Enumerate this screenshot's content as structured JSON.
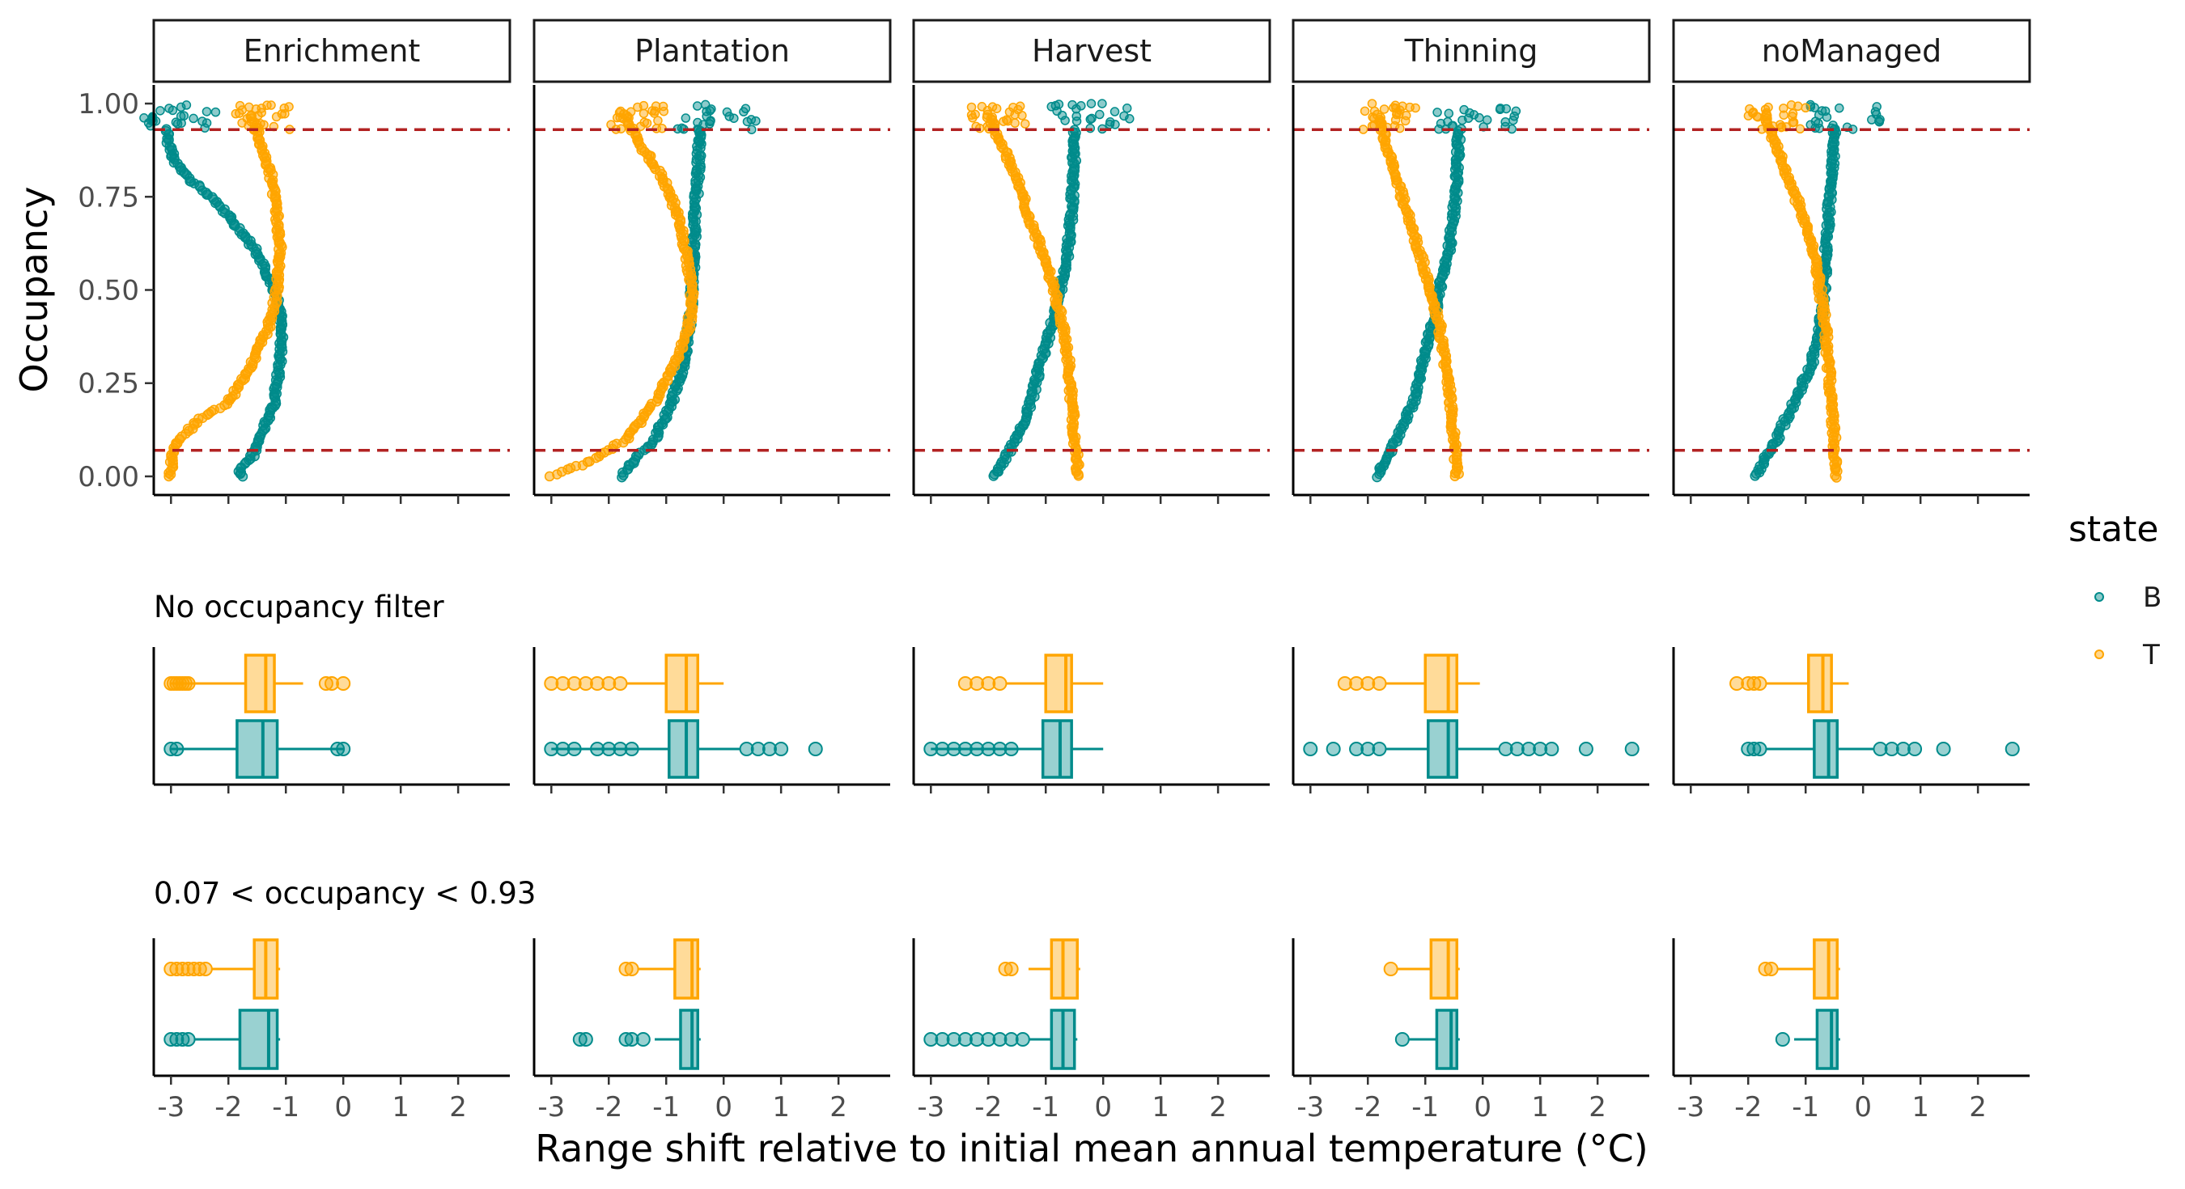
{
  "chart_data": {
    "type": "scatter",
    "facets": [
      "Enrichment",
      "Plantation",
      "Harvest",
      "Thinning",
      "noManaged"
    ],
    "ylabel": "Occupancy",
    "xlabel": "Range shift relative to initial mean annual temperature (°C)",
    "x_ticks": [
      "-3",
      "-2",
      "-1",
      "0",
      "1",
      "2"
    ],
    "y_ticks": [
      "0.00",
      "0.25",
      "0.50",
      "0.75",
      "1.00"
    ],
    "xlim": [
      -3.3,
      2.9
    ],
    "ylim": [
      -0.05,
      1.05
    ],
    "threshold_lines": [
      0.07,
      0.93
    ],
    "threshold_color": "#b22222",
    "legend": {
      "title": "state",
      "entries": [
        {
          "key": "B",
          "label": "B",
          "color": "#008b8b"
        },
        {
          "key": "T",
          "label": "T",
          "color": "#ffa500"
        }
      ]
    },
    "rows": [
      {
        "title": "",
        "type": "scatter"
      },
      {
        "title": "No occupancy filter",
        "type": "boxplot"
      },
      {
        "title": "0.07 < occupancy < 0.93",
        "type": "boxplot"
      }
    ],
    "curves": {
      "B": [
        [
          [
            0.0,
            -1.75
          ],
          [
            0.02,
            -1.8
          ],
          [
            0.05,
            -1.6
          ],
          [
            0.1,
            -1.45
          ],
          [
            0.2,
            -1.2
          ],
          [
            0.3,
            -1.1
          ],
          [
            0.4,
            -1.05
          ],
          [
            0.5,
            -1.2
          ],
          [
            0.6,
            -1.5
          ],
          [
            0.7,
            -2.0
          ],
          [
            0.75,
            -2.3
          ],
          [
            0.8,
            -2.7
          ],
          [
            0.85,
            -2.95
          ],
          [
            0.9,
            -3.05
          ],
          [
            0.93,
            -3.05
          ]
        ],
        [
          [
            0.0,
            -1.8
          ],
          [
            0.05,
            -1.5
          ],
          [
            0.1,
            -1.2
          ],
          [
            0.2,
            -0.9
          ],
          [
            0.3,
            -0.7
          ],
          [
            0.4,
            -0.6
          ],
          [
            0.5,
            -0.55
          ],
          [
            0.6,
            -0.52
          ],
          [
            0.7,
            -0.5
          ],
          [
            0.8,
            -0.45
          ],
          [
            0.9,
            -0.42
          ],
          [
            0.93,
            -0.4
          ]
        ],
        [
          [
            0.0,
            -1.9
          ],
          [
            0.05,
            -1.7
          ],
          [
            0.1,
            -1.5
          ],
          [
            0.2,
            -1.25
          ],
          [
            0.3,
            -1.1
          ],
          [
            0.4,
            -0.9
          ],
          [
            0.5,
            -0.75
          ],
          [
            0.6,
            -0.62
          ],
          [
            0.7,
            -0.55
          ],
          [
            0.8,
            -0.52
          ],
          [
            0.9,
            -0.5
          ],
          [
            0.93,
            -0.5
          ]
        ],
        [
          [
            0.0,
            -1.85
          ],
          [
            0.05,
            -1.65
          ],
          [
            0.1,
            -1.5
          ],
          [
            0.2,
            -1.2
          ],
          [
            0.3,
            -1.05
          ],
          [
            0.4,
            -0.9
          ],
          [
            0.5,
            -0.75
          ],
          [
            0.6,
            -0.6
          ],
          [
            0.7,
            -0.5
          ],
          [
            0.8,
            -0.45
          ],
          [
            0.9,
            -0.42
          ],
          [
            0.93,
            -0.4
          ]
        ],
        [
          [
            0.0,
            -1.85
          ],
          [
            0.05,
            -1.7
          ],
          [
            0.1,
            -1.5
          ],
          [
            0.2,
            -1.2
          ],
          [
            0.3,
            -0.9
          ],
          [
            0.4,
            -0.75
          ],
          [
            0.5,
            -0.68
          ],
          [
            0.6,
            -0.65
          ],
          [
            0.7,
            -0.6
          ],
          [
            0.8,
            -0.55
          ],
          [
            0.9,
            -0.5
          ],
          [
            0.93,
            -0.5
          ]
        ]
      ],
      "T": [
        [
          [
            0.0,
            -3.0
          ],
          [
            0.05,
            -3.0
          ],
          [
            0.1,
            -2.85
          ],
          [
            0.15,
            -2.5
          ],
          [
            0.2,
            -2.0
          ],
          [
            0.3,
            -1.6
          ],
          [
            0.4,
            -1.3
          ],
          [
            0.5,
            -1.15
          ],
          [
            0.6,
            -1.1
          ],
          [
            0.7,
            -1.15
          ],
          [
            0.8,
            -1.25
          ],
          [
            0.9,
            -1.45
          ],
          [
            0.97,
            -1.6
          ]
        ],
        [
          [
            0.0,
            -3.0
          ],
          [
            0.05,
            -2.2
          ],
          [
            0.1,
            -1.7
          ],
          [
            0.2,
            -1.2
          ],
          [
            0.3,
            -0.85
          ],
          [
            0.4,
            -0.6
          ],
          [
            0.5,
            -0.55
          ],
          [
            0.6,
            -0.65
          ],
          [
            0.7,
            -0.8
          ],
          [
            0.8,
            -1.05
          ],
          [
            0.9,
            -1.5
          ],
          [
            0.97,
            -1.7
          ]
        ],
        [
          [
            0.0,
            -0.45
          ],
          [
            0.05,
            -0.45
          ],
          [
            0.1,
            -0.5
          ],
          [
            0.2,
            -0.55
          ],
          [
            0.3,
            -0.6
          ],
          [
            0.4,
            -0.7
          ],
          [
            0.5,
            -0.85
          ],
          [
            0.6,
            -1.05
          ],
          [
            0.7,
            -1.3
          ],
          [
            0.8,
            -1.5
          ],
          [
            0.9,
            -1.8
          ],
          [
            0.97,
            -2.0
          ]
        ],
        [
          [
            0.0,
            -0.45
          ],
          [
            0.05,
            -0.48
          ],
          [
            0.1,
            -0.5
          ],
          [
            0.2,
            -0.55
          ],
          [
            0.3,
            -0.65
          ],
          [
            0.4,
            -0.75
          ],
          [
            0.5,
            -0.9
          ],
          [
            0.6,
            -1.1
          ],
          [
            0.7,
            -1.3
          ],
          [
            0.8,
            -1.5
          ],
          [
            0.9,
            -1.7
          ],
          [
            0.97,
            -1.8
          ]
        ],
        [
          [
            0.0,
            -0.45
          ],
          [
            0.05,
            -0.48
          ],
          [
            0.1,
            -0.5
          ],
          [
            0.2,
            -0.55
          ],
          [
            0.3,
            -0.6
          ],
          [
            0.4,
            -0.65
          ],
          [
            0.5,
            -0.75
          ],
          [
            0.6,
            -0.85
          ],
          [
            0.7,
            -1.05
          ],
          [
            0.8,
            -1.3
          ],
          [
            0.9,
            -1.55
          ],
          [
            0.97,
            -1.7
          ]
        ]
      ]
    },
    "boxplots_no_filter": [
      {
        "facet": "Enrichment",
        "T": {
          "min": -3.0,
          "q1": -1.7,
          "median": -1.35,
          "q3": -1.2,
          "max": -0.7,
          "outliers": [
            -3.0,
            -2.95,
            -2.9,
            -2.85,
            -2.8,
            -2.75,
            -2.7,
            -0.3,
            -0.2,
            0.0
          ]
        },
        "B": {
          "min": -3.0,
          "q1": -1.85,
          "median": -1.4,
          "q3": -1.15,
          "max": 0.0,
          "outliers": [
            -3.0,
            -2.9,
            -0.1,
            0.0
          ]
        }
      },
      {
        "facet": "Plantation",
        "T": {
          "min": -1.7,
          "q1": -1.0,
          "median": -0.65,
          "q3": -0.45,
          "max": 0.0,
          "outliers": [
            -3.0,
            -2.8,
            -2.6,
            -2.4,
            -2.2,
            -2.0,
            -1.8
          ]
        },
        "B": {
          "min": -3.0,
          "q1": -0.95,
          "median": -0.65,
          "q3": -0.45,
          "max": 0.3,
          "outliers": [
            -3.0,
            -2.8,
            -2.6,
            -2.2,
            -2.0,
            -1.8,
            -1.6,
            0.4,
            0.6,
            0.8,
            1.0,
            1.6
          ]
        },
        "_note": ""
      },
      {
        "facet": "Harvest",
        "T": {
          "min": -1.7,
          "q1": -1.0,
          "median": -0.65,
          "q3": -0.55,
          "max": 0.0,
          "outliers": [
            -2.4,
            -2.2,
            -2.0,
            -1.8
          ]
        },
        "B": {
          "min": -3.0,
          "q1": -1.05,
          "median": -0.75,
          "q3": -0.55,
          "max": 0.0,
          "outliers": [
            -3.0,
            -2.8,
            -2.6,
            -2.4,
            -2.2,
            -2.0,
            -1.8,
            -1.6
          ]
        }
      },
      {
        "facet": "Thinning",
        "T": {
          "min": -1.7,
          "q1": -1.0,
          "median": -0.6,
          "q3": -0.45,
          "max": -0.05,
          "outliers": [
            -2.4,
            -2.2,
            -2.0,
            -1.8
          ]
        },
        "B": {
          "min": -1.7,
          "q1": -0.95,
          "median": -0.6,
          "q3": -0.45,
          "max": 0.3,
          "outliers": [
            -3.0,
            -2.6,
            -2.2,
            -2.0,
            -1.8,
            0.4,
            0.6,
            0.8,
            1.0,
            1.2,
            1.8,
            2.6
          ]
        }
      },
      {
        "facet": "noManaged",
        "T": {
          "min": -1.7,
          "q1": -0.95,
          "median": -0.7,
          "q3": -0.55,
          "max": -0.25,
          "outliers": [
            -2.2,
            -2.0,
            -1.9,
            -1.8
          ]
        },
        "B": {
          "min": -1.7,
          "q1": -0.85,
          "median": -0.6,
          "q3": -0.45,
          "max": 0.2,
          "outliers": [
            -2.0,
            -1.9,
            -1.8,
            0.3,
            0.5,
            0.7,
            0.9,
            1.4,
            2.6
          ]
        }
      }
    ],
    "boxplots_filtered": [
      {
        "facet": "Enrichment",
        "T": {
          "min": -2.3,
          "q1": -1.55,
          "median": -1.35,
          "q3": -1.15,
          "max": -1.1,
          "outliers": [
            -3.0,
            -2.9,
            -2.8,
            -2.7,
            -2.6,
            -2.5,
            -2.4
          ]
        },
        "B": {
          "min": -2.6,
          "q1": -1.8,
          "median": -1.3,
          "q3": -1.15,
          "max": -1.1,
          "outliers": [
            -3.0,
            -2.9,
            -2.8,
            -2.7
          ]
        }
      },
      {
        "facet": "Plantation",
        "T": {
          "min": -1.5,
          "q1": -0.85,
          "median": -0.55,
          "q3": -0.45,
          "max": -0.4,
          "outliers": [
            -1.7,
            -1.6
          ]
        },
        "B": {
          "min": -1.2,
          "q1": -0.75,
          "median": -0.55,
          "q3": -0.45,
          "max": -0.4,
          "outliers": [
            -2.5,
            -2.4,
            -1.7,
            -1.6,
            -1.4
          ]
        }
      },
      {
        "facet": "Harvest",
        "T": {
          "min": -1.3,
          "q1": -0.9,
          "median": -0.7,
          "q3": -0.45,
          "max": -0.4,
          "outliers": [
            -1.7,
            -1.6
          ]
        },
        "B": {
          "min": -1.3,
          "q1": -0.9,
          "median": -0.7,
          "q3": -0.5,
          "max": -0.45,
          "outliers": [
            -3.0,
            -2.8,
            -2.6,
            -2.4,
            -2.2,
            -2.0,
            -1.8,
            -1.6,
            -1.4
          ]
        }
      },
      {
        "facet": "Thinning",
        "T": {
          "min": -1.5,
          "q1": -0.9,
          "median": -0.6,
          "q3": -0.45,
          "max": -0.4,
          "outliers": [
            -1.6
          ]
        },
        "B": {
          "min": -1.3,
          "q1": -0.8,
          "median": -0.55,
          "q3": -0.45,
          "max": -0.4,
          "outliers": [
            -1.4
          ]
        }
      },
      {
        "facet": "noManaged",
        "T": {
          "min": -1.5,
          "q1": -0.85,
          "median": -0.6,
          "q3": -0.45,
          "max": -0.4,
          "outliers": [
            -1.7,
            -1.6
          ]
        },
        "B": {
          "min": -1.2,
          "q1": -0.8,
          "median": -0.55,
          "q3": -0.45,
          "max": -0.4,
          "outliers": [
            -1.4
          ]
        }
      }
    ]
  }
}
